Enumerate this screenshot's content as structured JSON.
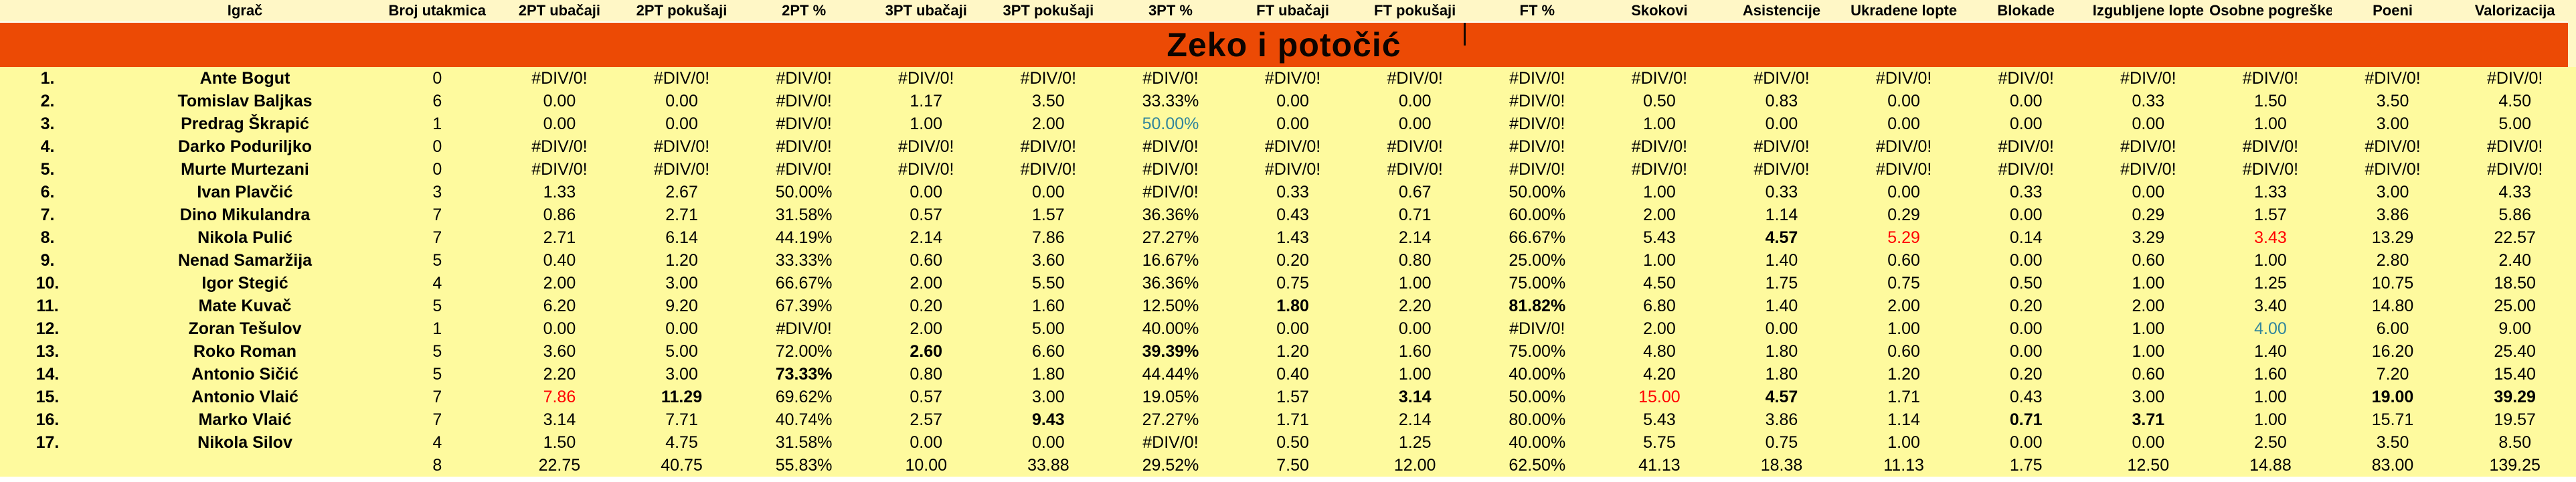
{
  "sheet": {
    "title": "Zeko i potočić",
    "colors": {
      "band": "#EC4A05",
      "header_bg": "#FFF7C6",
      "row_bg": "#FEFA9E",
      "red": "#FF0000",
      "blue": "#31859C",
      "text": "#000000"
    },
    "columns": [
      "",
      "Igrač",
      "Broj utakmica",
      "2PT ubačaji",
      "2PT pokušaji",
      "2PT %",
      "3PT ubačaji",
      "3PT pokušaji",
      "3PT %",
      "FT ubačaji",
      "FT pokušaji",
      "FT %",
      "Skokovi",
      "Asistencije",
      "Ukradene lopte",
      "Blokade",
      "Izgubljene lopte",
      "Osobne pogreške",
      "Poeni",
      "Valorizacija"
    ],
    "rows": [
      {
        "num": "1.",
        "name": "Ante Bogut",
        "cells": [
          "0",
          "#DIV/0!",
          "#DIV/0!",
          "#DIV/0!",
          "#DIV/0!",
          "#DIV/0!",
          "#DIV/0!",
          "#DIV/0!",
          "#DIV/0!",
          "#DIV/0!",
          "#DIV/0!",
          "#DIV/0!",
          "#DIV/0!",
          "#DIV/0!",
          "#DIV/0!",
          "#DIV/0!",
          "#DIV/0!",
          "#DIV/0!"
        ]
      },
      {
        "num": "2.",
        "name": "Tomislav Baljkas",
        "cells": [
          "6",
          "0.00",
          "0.00",
          "#DIV/0!",
          "1.17",
          "3.50",
          "33.33%",
          "0.00",
          "0.00",
          "#DIV/0!",
          "0.50",
          "0.83",
          "0.00",
          "0.00",
          "0.33",
          "1.50",
          "3.50",
          "4.50"
        ]
      },
      {
        "num": "3.",
        "name": "Predrag Škrapić",
        "cells": [
          "1",
          "0.00",
          "0.00",
          "#DIV/0!",
          "1.00",
          "2.00",
          {
            "v": "50.00%",
            "s": "blue"
          },
          "0.00",
          "0.00",
          "#DIV/0!",
          "1.00",
          "0.00",
          "0.00",
          "0.00",
          "0.00",
          "1.00",
          "3.00",
          "5.00"
        ]
      },
      {
        "num": "4.",
        "name": "Darko Poduriljko",
        "cells": [
          "0",
          "#DIV/0!",
          "#DIV/0!",
          "#DIV/0!",
          "#DIV/0!",
          "#DIV/0!",
          "#DIV/0!",
          "#DIV/0!",
          "#DIV/0!",
          "#DIV/0!",
          "#DIV/0!",
          "#DIV/0!",
          "#DIV/0!",
          "#DIV/0!",
          "#DIV/0!",
          "#DIV/0!",
          "#DIV/0!",
          "#DIV/0!"
        ]
      },
      {
        "num": "5.",
        "name": "Murte Murtezani",
        "cells": [
          "0",
          "#DIV/0!",
          "#DIV/0!",
          "#DIV/0!",
          "#DIV/0!",
          "#DIV/0!",
          "#DIV/0!",
          "#DIV/0!",
          "#DIV/0!",
          "#DIV/0!",
          "#DIV/0!",
          "#DIV/0!",
          "#DIV/0!",
          "#DIV/0!",
          "#DIV/0!",
          "#DIV/0!",
          "#DIV/0!",
          "#DIV/0!"
        ]
      },
      {
        "num": "6.",
        "name": "Ivan Plavčić",
        "cells": [
          "3",
          "1.33",
          "2.67",
          "50.00%",
          "0.00",
          "0.00",
          "#DIV/0!",
          "0.33",
          "0.67",
          "50.00%",
          "1.00",
          "0.33",
          "0.00",
          "0.33",
          "0.00",
          "1.33",
          "3.00",
          "4.33"
        ]
      },
      {
        "num": "7.",
        "name": "Dino Mikulandra",
        "cells": [
          "7",
          "0.86",
          "2.71",
          "31.58%",
          "0.57",
          "1.57",
          "36.36%",
          "0.43",
          "0.71",
          "60.00%",
          "2.00",
          "1.14",
          "0.29",
          "0.00",
          "0.29",
          "1.57",
          "3.86",
          "5.86"
        ]
      },
      {
        "num": "8.",
        "name": "Nikola Pulić",
        "cells": [
          "7",
          "2.71",
          "6.14",
          "44.19%",
          "2.14",
          "7.86",
          "27.27%",
          "1.43",
          "2.14",
          "66.67%",
          "5.43",
          {
            "v": "4.57",
            "s": "bold"
          },
          {
            "v": "5.29",
            "s": "red"
          },
          "0.14",
          "3.29",
          {
            "v": "3.43",
            "s": "red"
          },
          "13.29",
          "22.57"
        ]
      },
      {
        "num": "9.",
        "name": "Nenad Samaržija",
        "cells": [
          "5",
          "0.40",
          "1.20",
          "33.33%",
          "0.60",
          "3.60",
          "16.67%",
          "0.20",
          "0.80",
          "25.00%",
          "1.00",
          "1.40",
          "0.60",
          "0.00",
          "0.60",
          "1.00",
          "2.80",
          "2.40"
        ]
      },
      {
        "num": "10.",
        "name": "Igor Stegić",
        "cells": [
          "4",
          "2.00",
          "3.00",
          "66.67%",
          "2.00",
          "5.50",
          "36.36%",
          "0.75",
          "1.00",
          "75.00%",
          "4.50",
          "1.75",
          "0.75",
          "0.50",
          "1.00",
          "1.25",
          "10.75",
          "18.50"
        ]
      },
      {
        "num": "11.",
        "name": "Mate Kuvač",
        "cells": [
          "5",
          "6.20",
          "9.20",
          "67.39%",
          "0.20",
          "1.60",
          "12.50%",
          {
            "v": "1.80",
            "s": "bold"
          },
          "2.20",
          {
            "v": "81.82%",
            "s": "bold"
          },
          "6.80",
          "1.40",
          "2.00",
          "0.20",
          "2.00",
          "3.40",
          "14.80",
          "25.00"
        ]
      },
      {
        "num": "12.",
        "name": "Zoran Tešulov",
        "cells": [
          "1",
          "0.00",
          "0.00",
          "#DIV/0!",
          "2.00",
          "5.00",
          "40.00%",
          "0.00",
          "0.00",
          "#DIV/0!",
          "2.00",
          "0.00",
          "1.00",
          "0.00",
          "1.00",
          {
            "v": "4.00",
            "s": "blue"
          },
          "6.00",
          "9.00"
        ]
      },
      {
        "num": "13.",
        "name": "Roko Roman",
        "cells": [
          "5",
          "3.60",
          "5.00",
          "72.00%",
          {
            "v": "2.60",
            "s": "bold"
          },
          "6.60",
          {
            "v": "39.39%",
            "s": "bold"
          },
          "1.20",
          "1.60",
          "75.00%",
          "4.80",
          "1.80",
          "0.60",
          "0.00",
          "1.00",
          "1.40",
          "16.20",
          "25.40"
        ]
      },
      {
        "num": "14.",
        "name": "Antonio Sičić",
        "cells": [
          "5",
          "2.20",
          "3.00",
          {
            "v": "73.33%",
            "s": "bold"
          },
          "0.80",
          "1.80",
          "44.44%",
          "0.40",
          "1.00",
          "40.00%",
          "4.20",
          "1.80",
          "1.20",
          "0.20",
          "0.60",
          "1.60",
          "7.20",
          "15.40"
        ]
      },
      {
        "num": "15.",
        "name": "Antonio Vlaić",
        "cells": [
          "7",
          {
            "v": "7.86",
            "s": "red"
          },
          {
            "v": "11.29",
            "s": "bold"
          },
          "69.62%",
          "0.57",
          "3.00",
          "19.05%",
          "1.57",
          {
            "v": "3.14",
            "s": "bold"
          },
          "50.00%",
          {
            "v": "15.00",
            "s": "red"
          },
          {
            "v": "4.57",
            "s": "bold"
          },
          "1.71",
          "0.43",
          "3.00",
          "1.00",
          {
            "v": "19.00",
            "s": "bold"
          },
          {
            "v": "39.29",
            "s": "bold"
          }
        ]
      },
      {
        "num": "16.",
        "name": "Marko Vlaić",
        "cells": [
          "7",
          "3.14",
          "7.71",
          "40.74%",
          "2.57",
          {
            "v": "9.43",
            "s": "bold"
          },
          "27.27%",
          "1.71",
          "2.14",
          "80.00%",
          "5.43",
          "3.86",
          "1.14",
          {
            "v": "0.71",
            "s": "bold"
          },
          {
            "v": "3.71",
            "s": "bold"
          },
          "1.00",
          "15.71",
          "19.57"
        ]
      },
      {
        "num": "17.",
        "name": "Nikola Silov",
        "cells": [
          "4",
          "1.50",
          "4.75",
          "31.58%",
          "0.00",
          "0.00",
          "#DIV/0!",
          "0.50",
          "1.25",
          "40.00%",
          "5.75",
          "0.75",
          "1.00",
          "0.00",
          "0.00",
          "2.50",
          "3.50",
          "8.50"
        ]
      },
      {
        "num": "",
        "name": "",
        "cells": [
          "8",
          "22.75",
          "40.75",
          "55.83%",
          "10.00",
          "33.88",
          "29.52%",
          "7.50",
          "12.00",
          "62.50%",
          "41.13",
          "18.38",
          "11.13",
          "1.75",
          "12.50",
          "14.88",
          "83.00",
          "139.25"
        ]
      }
    ]
  }
}
